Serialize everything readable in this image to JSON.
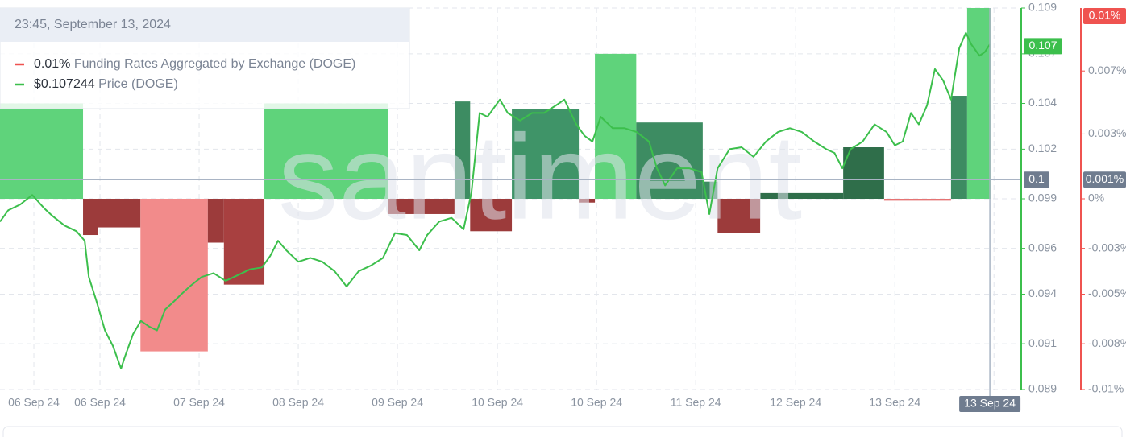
{
  "chart_data": {
    "type": "bar-line",
    "watermark": "santiment",
    "tooltip": {
      "title": "23:45, September 13, 2024",
      "values": [
        "0.01%",
        "$0.107244"
      ]
    },
    "series": [
      {
        "name": "Funding Rates Aggregated by Exchange (DOGE)",
        "type": "bar",
        "axis": "y2",
        "color": "#ef5350",
        "bins": [
          0,
          20.1,
          23.8,
          34,
          50.3,
          54.2,
          64,
          94,
          110.2,
          113.8,
          123.9,
          140.1,
          144,
          154,
          170.1,
          173.7,
          184,
          204.1,
          214,
          230.2,
          234.1,
          239.8
        ],
        "values": [
          0.005,
          -0.0019,
          -0.0015,
          -0.008,
          -0.0023,
          -0.0045,
          0.005,
          -0.0008,
          0.0051,
          -0.0017,
          0.0047,
          -0.0002,
          0.0076,
          0.004,
          0.0009,
          -0.0018,
          0.0003,
          0.0027,
          -0.0001,
          0.0054,
          0.01
        ],
        "colors": [
          "#5fd37b",
          "#9c3b3b",
          "#9c3b3b",
          "#f28b8b",
          "#9c3b3b",
          "#a84040",
          "#5fd37b",
          "#9c3b3b",
          "#3d8c62",
          "#9c3b3b",
          "#3f9468",
          "#9c3b3b",
          "#5fd37b",
          "#3d8c62",
          "#3d8c62",
          "#9c3b3b",
          "#2f6e4a",
          "#2f6e4a",
          "#e57373",
          "#3d8c62",
          "#5fd37b"
        ]
      },
      {
        "name": "Price (DOGE)",
        "type": "line",
        "axis": "y",
        "color": "#3cbf4c",
        "x": [
          0,
          2,
          4.9,
          7.8,
          10.7,
          12.7,
          15.6,
          18.5,
          20.5,
          21.5,
          23.4,
          25.4,
          27.3,
          29.3,
          30.2,
          32.2,
          34.1,
          36.1,
          38,
          40,
          42,
          43.9,
          45.9,
          48.8,
          51.7,
          54.6,
          57.6,
          60.5,
          63.4,
          65.4,
          67.3,
          69.3,
          72.2,
          75.1,
          78,
          81,
          83.9,
          86.8,
          89.8,
          92.7,
          95.6,
          98.5,
          101.5,
          103.4,
          106.3,
          109.3,
          112.2,
          114.1,
          116.1,
          118,
          121,
          122.9,
          125.9,
          128.8,
          131.7,
          134.6,
          136.6,
          139.5,
          141.5,
          143.4,
          145.4,
          148.3,
          151.2,
          154.1,
          157.1,
          159,
          161,
          163.9,
          166.8,
          169.8,
          171.7,
          173.7,
          176.6,
          179.5,
          182.4,
          185.4,
          188.3,
          191.2,
          194.1,
          197.1,
          200,
          202,
          203.9,
          205.9,
          208.8,
          211.7,
          214.6,
          216.6,
          218.5,
          220.5,
          222.4,
          224.4,
          226.3,
          228.3,
          230.2,
          232.2,
          233.8,
          235.1,
          237.1,
          238.4,
          239.6
        ],
        "values": [
          0.0978,
          0.0984,
          0.0987,
          0.0992,
          0.0985,
          0.0981,
          0.0976,
          0.0973,
          0.0968,
          0.0949,
          0.0936,
          0.0921,
          0.0913,
          0.0901,
          0.0907,
          0.0919,
          0.0926,
          0.0923,
          0.0921,
          0.0932,
          0.0936,
          0.094,
          0.0944,
          0.0949,
          0.0951,
          0.0947,
          0.095,
          0.0953,
          0.0954,
          0.096,
          0.0968,
          0.0963,
          0.0957,
          0.0959,
          0.0957,
          0.0952,
          0.0944,
          0.0952,
          0.0955,
          0.0959,
          0.0972,
          0.0971,
          0.0963,
          0.0971,
          0.0978,
          0.098,
          0.0974,
          0.0993,
          0.1035,
          0.1033,
          0.1042,
          0.1035,
          0.1031,
          0.1035,
          0.1035,
          0.1039,
          0.1042,
          0.1029,
          0.1023,
          0.102,
          0.1033,
          0.1027,
          0.1027,
          0.1025,
          0.102,
          0.1006,
          0.0997,
          0.1006,
          0.1006,
          0.1004,
          0.0982,
          0.1006,
          0.1016,
          0.1017,
          0.1012,
          0.102,
          0.1025,
          0.1027,
          0.1025,
          0.102,
          0.1016,
          0.1014,
          0.1006,
          0.1016,
          0.102,
          0.1029,
          0.1025,
          0.1018,
          0.102,
          0.1035,
          0.1029,
          0.1039,
          0.1058,
          0.1052,
          0.1042,
          0.1069,
          0.1077,
          0.1071,
          0.1065,
          0.1067,
          0.1071
        ]
      }
    ],
    "xlim": [
      0,
      246.8
    ],
    "xticks": [
      {
        "value": 8.2,
        "label": "06 Sep 24"
      },
      {
        "value": 24.2,
        "label": "06 Sep 24"
      },
      {
        "value": 48.2,
        "label": "07 Sep 24"
      },
      {
        "value": 72.2,
        "label": "08 Sep 24"
      },
      {
        "value": 96.2,
        "label": "09 Sep 24"
      },
      {
        "value": 120.4,
        "label": "10 Sep 24"
      },
      {
        "value": 144.4,
        "label": "10 Sep 24"
      },
      {
        "value": 168.4,
        "label": "11 Sep 24"
      },
      {
        "value": 192.6,
        "label": "12 Sep 24"
      },
      {
        "value": 216.6,
        "label": "13 Sep 24"
      },
      {
        "value": 240.6,
        "label": "13 Sep 24"
      }
    ],
    "ylim": [
      0.089,
      0.109
    ],
    "yticks": [
      0.089,
      {
        "value": 0.0914,
        "label": "0.091"
      },
      0.094,
      {
        "value": 0.0964,
        "label": "0.096"
      },
      0.099,
      {
        "value": 0.1016,
        "label": "0.102"
      },
      0.104,
      {
        "value": 0.1066,
        "label": "0.107"
      },
      0.109
    ],
    "y2lim": [
      -0.01,
      0.01
    ],
    "y2ticks": [
      {
        "value": -0.01,
        "label": "-0.01%"
      },
      {
        "value": -0.0076,
        "label": "-0.008%"
      },
      {
        "value": -0.005,
        "label": "-0.005%"
      },
      {
        "value": -0.0026,
        "label": "-0.003%"
      },
      {
        "value": 0,
        "label": "0%"
      },
      {
        "value": 0.0034,
        "label": "0.003%"
      },
      {
        "value": 0.0067,
        "label": "0.007%"
      }
    ],
    "grid": true,
    "current": {
      "y": 0.107,
      "y2": {
        "value": 0.01,
        "label": "0.01%"
      }
    },
    "crosshair": {
      "x": {
        "value": 239.6,
        "label": "13 Sep 24"
      },
      "y": 0.1,
      "y2": {
        "value": 0.001,
        "label": "0.001%"
      }
    }
  }
}
